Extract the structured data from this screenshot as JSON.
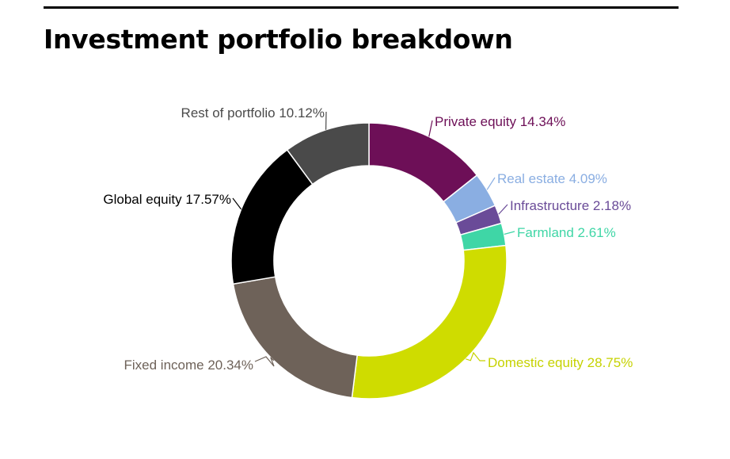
{
  "title": "Investment portfolio breakdown",
  "chart_data": {
    "type": "pie",
    "variant": "donut",
    "title": "Investment portfolio breakdown",
    "unit": "%",
    "slices": [
      {
        "label": "Private equity",
        "value": 14.34,
        "display": "Private equity 14.34%",
        "color": "#6d0f57",
        "label_color": "#6d0f57"
      },
      {
        "label": "Real estate",
        "value": 4.09,
        "display": "Real estate 4.09%",
        "color": "#8aaee2",
        "label_color": "#8aaee2"
      },
      {
        "label": "Infrastructure",
        "value": 2.18,
        "display": "Infrastructure 2.18%",
        "color": "#6a4b98",
        "label_color": "#6a4b98"
      },
      {
        "label": "Farmland",
        "value": 2.61,
        "display": "Farmland 2.61%",
        "color": "#3fd6a6",
        "label_color": "#3fd6a6"
      },
      {
        "label": "Domestic equity",
        "value": 28.75,
        "display": "Domestic equity 28.75%",
        "color": "#cfdc00",
        "label_color": "#c6d200"
      },
      {
        "label": "Fixed income",
        "value": 20.34,
        "display": "Fixed income 20.34%",
        "color": "#6e6259",
        "label_color": "#6e6259"
      },
      {
        "label": "Global equity",
        "value": 17.57,
        "display": "Global equity 17.57%",
        "color": "#000000",
        "label_color": "#000000"
      },
      {
        "label": "Rest of portfolio",
        "value": 10.12,
        "display": "Rest of portfolio 10.12%",
        "color": "#4a4a4a",
        "label_color": "#4a4a4a"
      }
    ]
  }
}
